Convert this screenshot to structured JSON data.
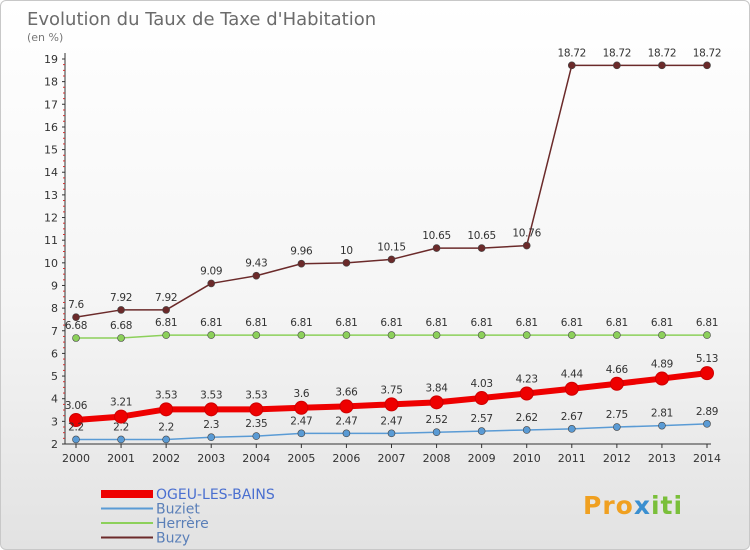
{
  "chart_data": {
    "type": "line",
    "title": "Evolution du Taux de Taxe d'Habitation",
    "subtitle": "(en %)",
    "x": [
      "2000",
      "2001",
      "2002",
      "2003",
      "2004",
      "2005",
      "2006",
      "2007",
      "2008",
      "2009",
      "2010",
      "2011",
      "2012",
      "2013",
      "2014"
    ],
    "ylim": [
      2,
      19
    ],
    "yticks": [
      2,
      3,
      4,
      5,
      6,
      7,
      8,
      9,
      10,
      11,
      12,
      13,
      14,
      15,
      16,
      17,
      18,
      19
    ],
    "grid": false,
    "legend_position": "bottom-left",
    "series": [
      {
        "name": "OGEU-LES-BAINS",
        "color": "#ee0000",
        "values": [
          3.06,
          3.21,
          3.53,
          3.53,
          3.53,
          3.6,
          3.66,
          3.75,
          3.84,
          4.03,
          4.23,
          4.44,
          4.66,
          4.89,
          5.13
        ],
        "labels": [
          "3.06",
          "3.21",
          "3.53",
          "3.53",
          "3.53",
          "3.6",
          "3.66",
          "3.75",
          "3.84",
          "4.03",
          "4.23",
          "4.44",
          "4.66",
          "4.89",
          "5.13"
        ]
      },
      {
        "name": "Buziet",
        "color": "#5a9bd5",
        "values": [
          2.2,
          2.2,
          2.2,
          2.3,
          2.35,
          2.47,
          2.47,
          2.47,
          2.52,
          2.57,
          2.62,
          2.67,
          2.75,
          2.81,
          2.89
        ],
        "labels": [
          "2.2",
          "2.2",
          "2.2",
          "2.3",
          "2.35",
          "2.47",
          "2.47",
          "2.47",
          "2.52",
          "2.57",
          "2.62",
          "2.67",
          "2.75",
          "2.81",
          "2.89"
        ]
      },
      {
        "name": "Herrère",
        "color": "#8cd05a",
        "values": [
          6.68,
          6.68,
          6.81,
          6.81,
          6.81,
          6.81,
          6.81,
          6.81,
          6.81,
          6.81,
          6.81,
          6.81,
          6.81,
          6.81,
          6.81
        ],
        "labels": [
          "6.68",
          "6.68",
          "6.81",
          "6.81",
          "6.81",
          "6.81",
          "6.81",
          "6.81",
          "6.81",
          "6.81",
          "6.81",
          "6.81",
          "6.81",
          "6.81",
          "6.81"
        ]
      },
      {
        "name": "Buzy",
        "color": "#6b2a2a",
        "values": [
          7.6,
          7.92,
          7.92,
          9.09,
          9.43,
          9.96,
          10,
          10.15,
          10.65,
          10.65,
          10.76,
          18.72,
          18.72,
          18.72,
          18.72
        ],
        "labels": [
          "7.6",
          "7.92",
          "7.92",
          "9.09",
          "9.43",
          "9.96",
          "10",
          "10.15",
          "10.65",
          "10.65",
          "10.76",
          "18.72",
          "18.72",
          "18.72",
          "18.72"
        ]
      }
    ]
  },
  "logo": {
    "part1": "Pro",
    "part2": "x",
    "part3": "iti"
  }
}
